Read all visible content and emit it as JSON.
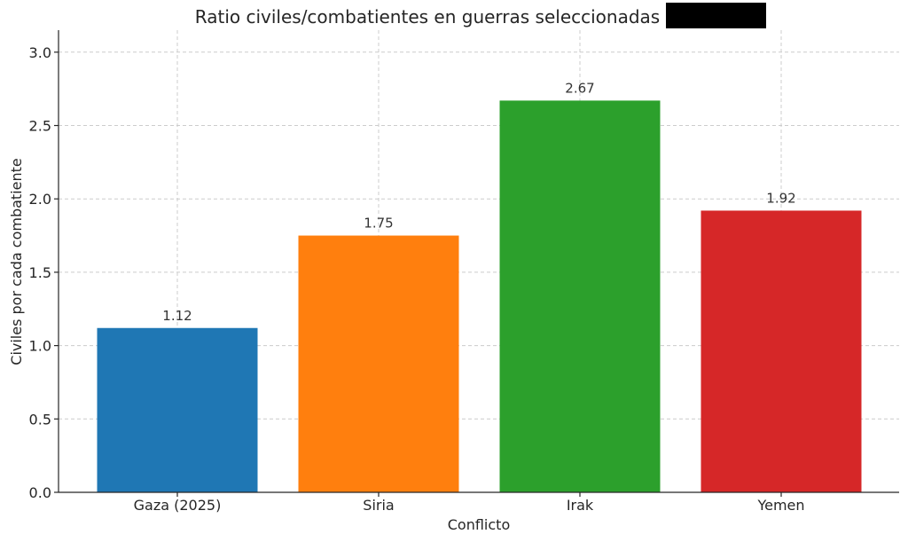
{
  "chart_data": {
    "type": "bar",
    "title": "Ratio civiles/combatientes en guerras seleccionadas",
    "xlabel": "Conflicto",
    "ylabel": "Civiles por cada combatiente",
    "categories": [
      "Gaza (2025)",
      "Siria",
      "Irak",
      "Yemen"
    ],
    "values": [
      1.12,
      1.75,
      2.67,
      1.92
    ],
    "value_labels": [
      "1.12",
      "1.75",
      "2.67",
      "1.92"
    ],
    "colors": [
      "#1f77b4",
      "#ff7f0e",
      "#2ca02c",
      "#d62728"
    ],
    "ylim": [
      0,
      3.15
    ],
    "yticks": [
      0.0,
      0.5,
      1.0,
      1.5,
      2.0,
      2.5,
      3.0
    ],
    "ytick_labels": [
      "0.0",
      "0.5",
      "1.0",
      "1.5",
      "2.0",
      "2.5",
      "3.0"
    ],
    "grid": true,
    "redaction_color": "#000000"
  }
}
